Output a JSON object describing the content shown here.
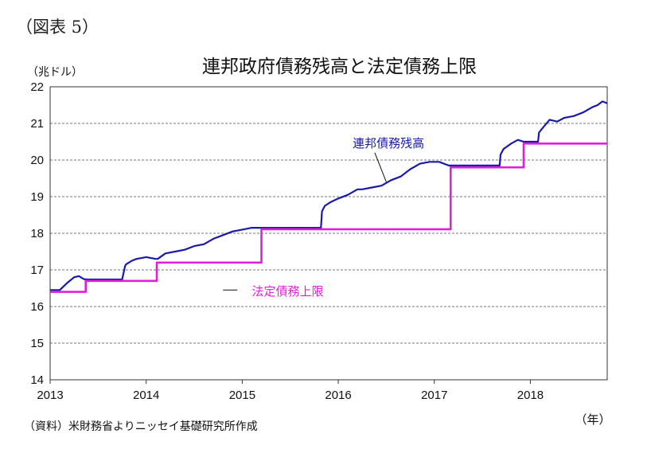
{
  "figure_label": "（図表 5）",
  "source_note": "（資料）米財務省よりニッセイ基礎研究所作成",
  "colors": {
    "debt": "#1a1aa8",
    "limit": "#e020d8",
    "grid": "#777777",
    "axis": "#333333"
  },
  "chart_data": {
    "type": "line",
    "title": "連邦政府債務残高と法定債務上限",
    "ylabel": "（兆ドル）",
    "xlabel": "（年）",
    "xlim": [
      2013,
      2018.8
    ],
    "ylim": [
      14,
      22
    ],
    "yticks": [
      14,
      15,
      16,
      17,
      18,
      19,
      20,
      21,
      22
    ],
    "xticks": [
      "2013",
      "2014",
      "2015",
      "2016",
      "2017",
      "2018"
    ],
    "grid": true,
    "series": [
      {
        "name": "連邦債務残高",
        "x": [
          2013.0,
          2013.1,
          2013.18,
          2013.25,
          2013.3,
          2013.35,
          2013.38,
          2013.45,
          2013.6,
          2013.75,
          2013.78,
          2013.79,
          2013.85,
          2013.9,
          2014.0,
          2014.1,
          2014.12,
          2014.2,
          2014.3,
          2014.4,
          2014.5,
          2014.6,
          2014.7,
          2014.8,
          2014.9,
          2015.0,
          2015.1,
          2015.15,
          2015.3,
          2015.5,
          2015.7,
          2015.82,
          2015.83,
          2015.86,
          2015.92,
          2016.0,
          2016.1,
          2016.2,
          2016.25,
          2016.35,
          2016.45,
          2016.55,
          2016.65,
          2016.75,
          2016.85,
          2016.95,
          2017.05,
          2017.15,
          2017.3,
          2017.5,
          2017.68,
          2017.69,
          2017.72,
          2017.8,
          2017.87,
          2017.93,
          2018.0,
          2018.08,
          2018.09,
          2018.12,
          2018.2,
          2018.28,
          2018.35,
          2018.45,
          2018.55,
          2018.65,
          2018.7,
          2018.75,
          2018.8
        ],
        "y": [
          16.45,
          16.45,
          16.65,
          16.8,
          16.83,
          16.75,
          16.74,
          16.74,
          16.74,
          16.74,
          17.1,
          17.15,
          17.25,
          17.3,
          17.35,
          17.3,
          17.3,
          17.45,
          17.5,
          17.55,
          17.65,
          17.7,
          17.85,
          17.95,
          18.05,
          18.1,
          18.15,
          18.15,
          18.15,
          18.15,
          18.15,
          18.15,
          18.6,
          18.75,
          18.85,
          18.95,
          19.05,
          19.2,
          19.2,
          19.25,
          19.3,
          19.45,
          19.55,
          19.75,
          19.9,
          19.95,
          19.95,
          19.85,
          19.85,
          19.85,
          19.85,
          20.15,
          20.3,
          20.45,
          20.55,
          20.5,
          20.5,
          20.5,
          20.75,
          20.85,
          21.1,
          21.05,
          21.15,
          21.2,
          21.3,
          21.45,
          21.5,
          21.6,
          21.55
        ],
        "color": "#1a1aa8"
      },
      {
        "name": "法定債務上限",
        "x": [
          2013.0,
          2013.37,
          2013.37,
          2014.11,
          2014.11,
          2015.2,
          2015.2,
          2017.17,
          2017.17,
          2017.93,
          2017.93,
          2018.8
        ],
        "y": [
          16.4,
          16.4,
          16.7,
          16.7,
          17.2,
          17.2,
          18.11,
          18.11,
          19.8,
          19.8,
          20.45,
          20.45
        ],
        "color": "#e020d8"
      }
    ],
    "annotations": [
      {
        "text": "連邦債務残高",
        "series": 0
      },
      {
        "text": "法定債務上限",
        "series": 1
      }
    ]
  }
}
